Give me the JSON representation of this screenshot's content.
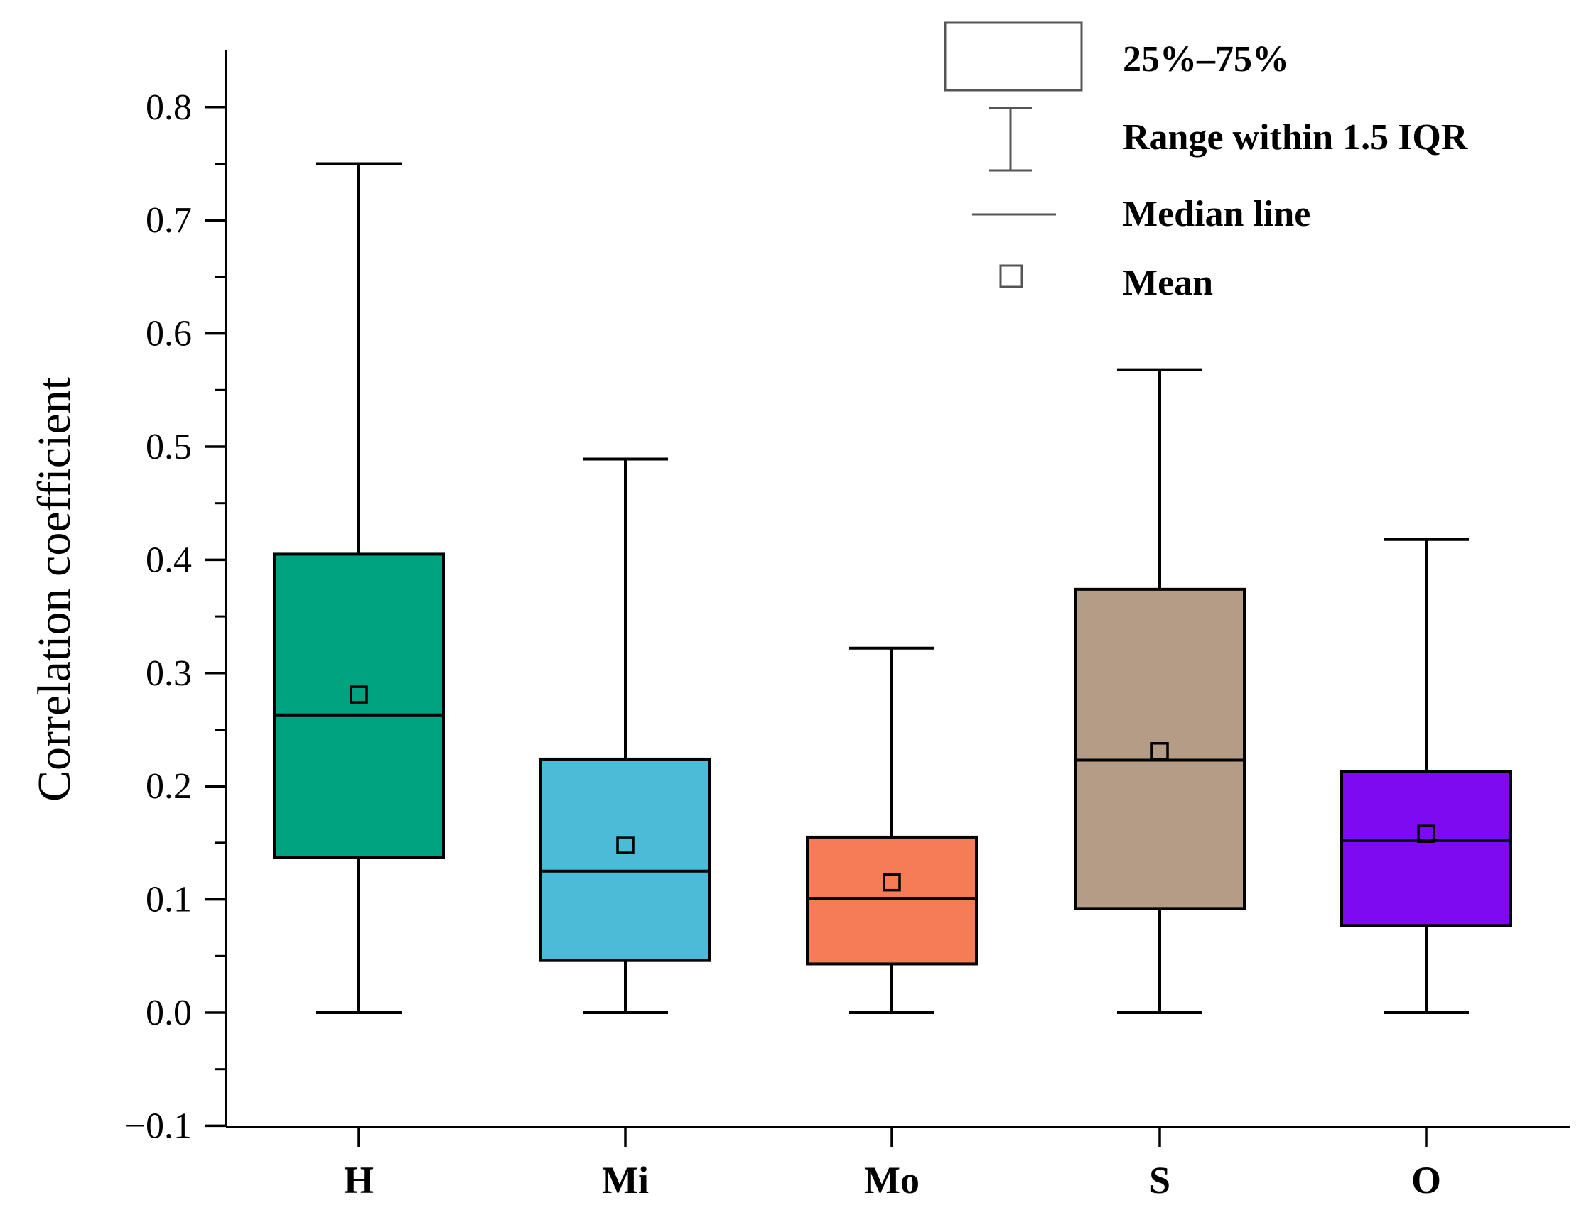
{
  "chart_data": {
    "type": "box",
    "title": "",
    "xlabel": "",
    "ylabel": "Correlation coefficient",
    "ylim": [
      -0.1,
      0.85
    ],
    "yticks": [
      -0.1,
      0.0,
      0.1,
      0.2,
      0.3,
      0.4,
      0.5,
      0.6,
      0.7,
      0.8
    ],
    "ytick_labels": [
      "−0.1",
      "0.0",
      "0.1",
      "0.2",
      "0.3",
      "0.4",
      "0.5",
      "0.6",
      "0.7",
      "0.8"
    ],
    "categories": [
      "H",
      "Mi",
      "Mo",
      "S",
      "O"
    ],
    "boxes": [
      {
        "category": "H",
        "whisker_low": 0.0,
        "q1": 0.137,
        "median": 0.263,
        "q3": 0.405,
        "whisker_high": 0.75,
        "mean": 0.281,
        "color": "#00A380"
      },
      {
        "category": "Mi",
        "whisker_low": 0.0,
        "q1": 0.046,
        "median": 0.125,
        "q3": 0.224,
        "whisker_high": 0.489,
        "mean": 0.148,
        "color": "#4ABCD8"
      },
      {
        "category": "Mo",
        "whisker_low": 0.0,
        "q1": 0.043,
        "median": 0.101,
        "q3": 0.155,
        "whisker_high": 0.322,
        "mean": 0.115,
        "color": "#F57C56"
      },
      {
        "category": "S",
        "whisker_low": 0.0,
        "q1": 0.092,
        "median": 0.223,
        "q3": 0.374,
        "whisker_high": 0.568,
        "mean": 0.231,
        "color": "#B59C87"
      },
      {
        "category": "O",
        "whisker_low": 0.0,
        "q1": 0.077,
        "median": 0.152,
        "q3": 0.213,
        "whisker_high": 0.418,
        "mean": 0.158,
        "color": "#7D0AF0"
      }
    ],
    "legend": {
      "placement": "top-right",
      "entries": [
        "25%–75%",
        "Range within 1.5 IQR",
        "Median line",
        "Mean"
      ]
    }
  }
}
